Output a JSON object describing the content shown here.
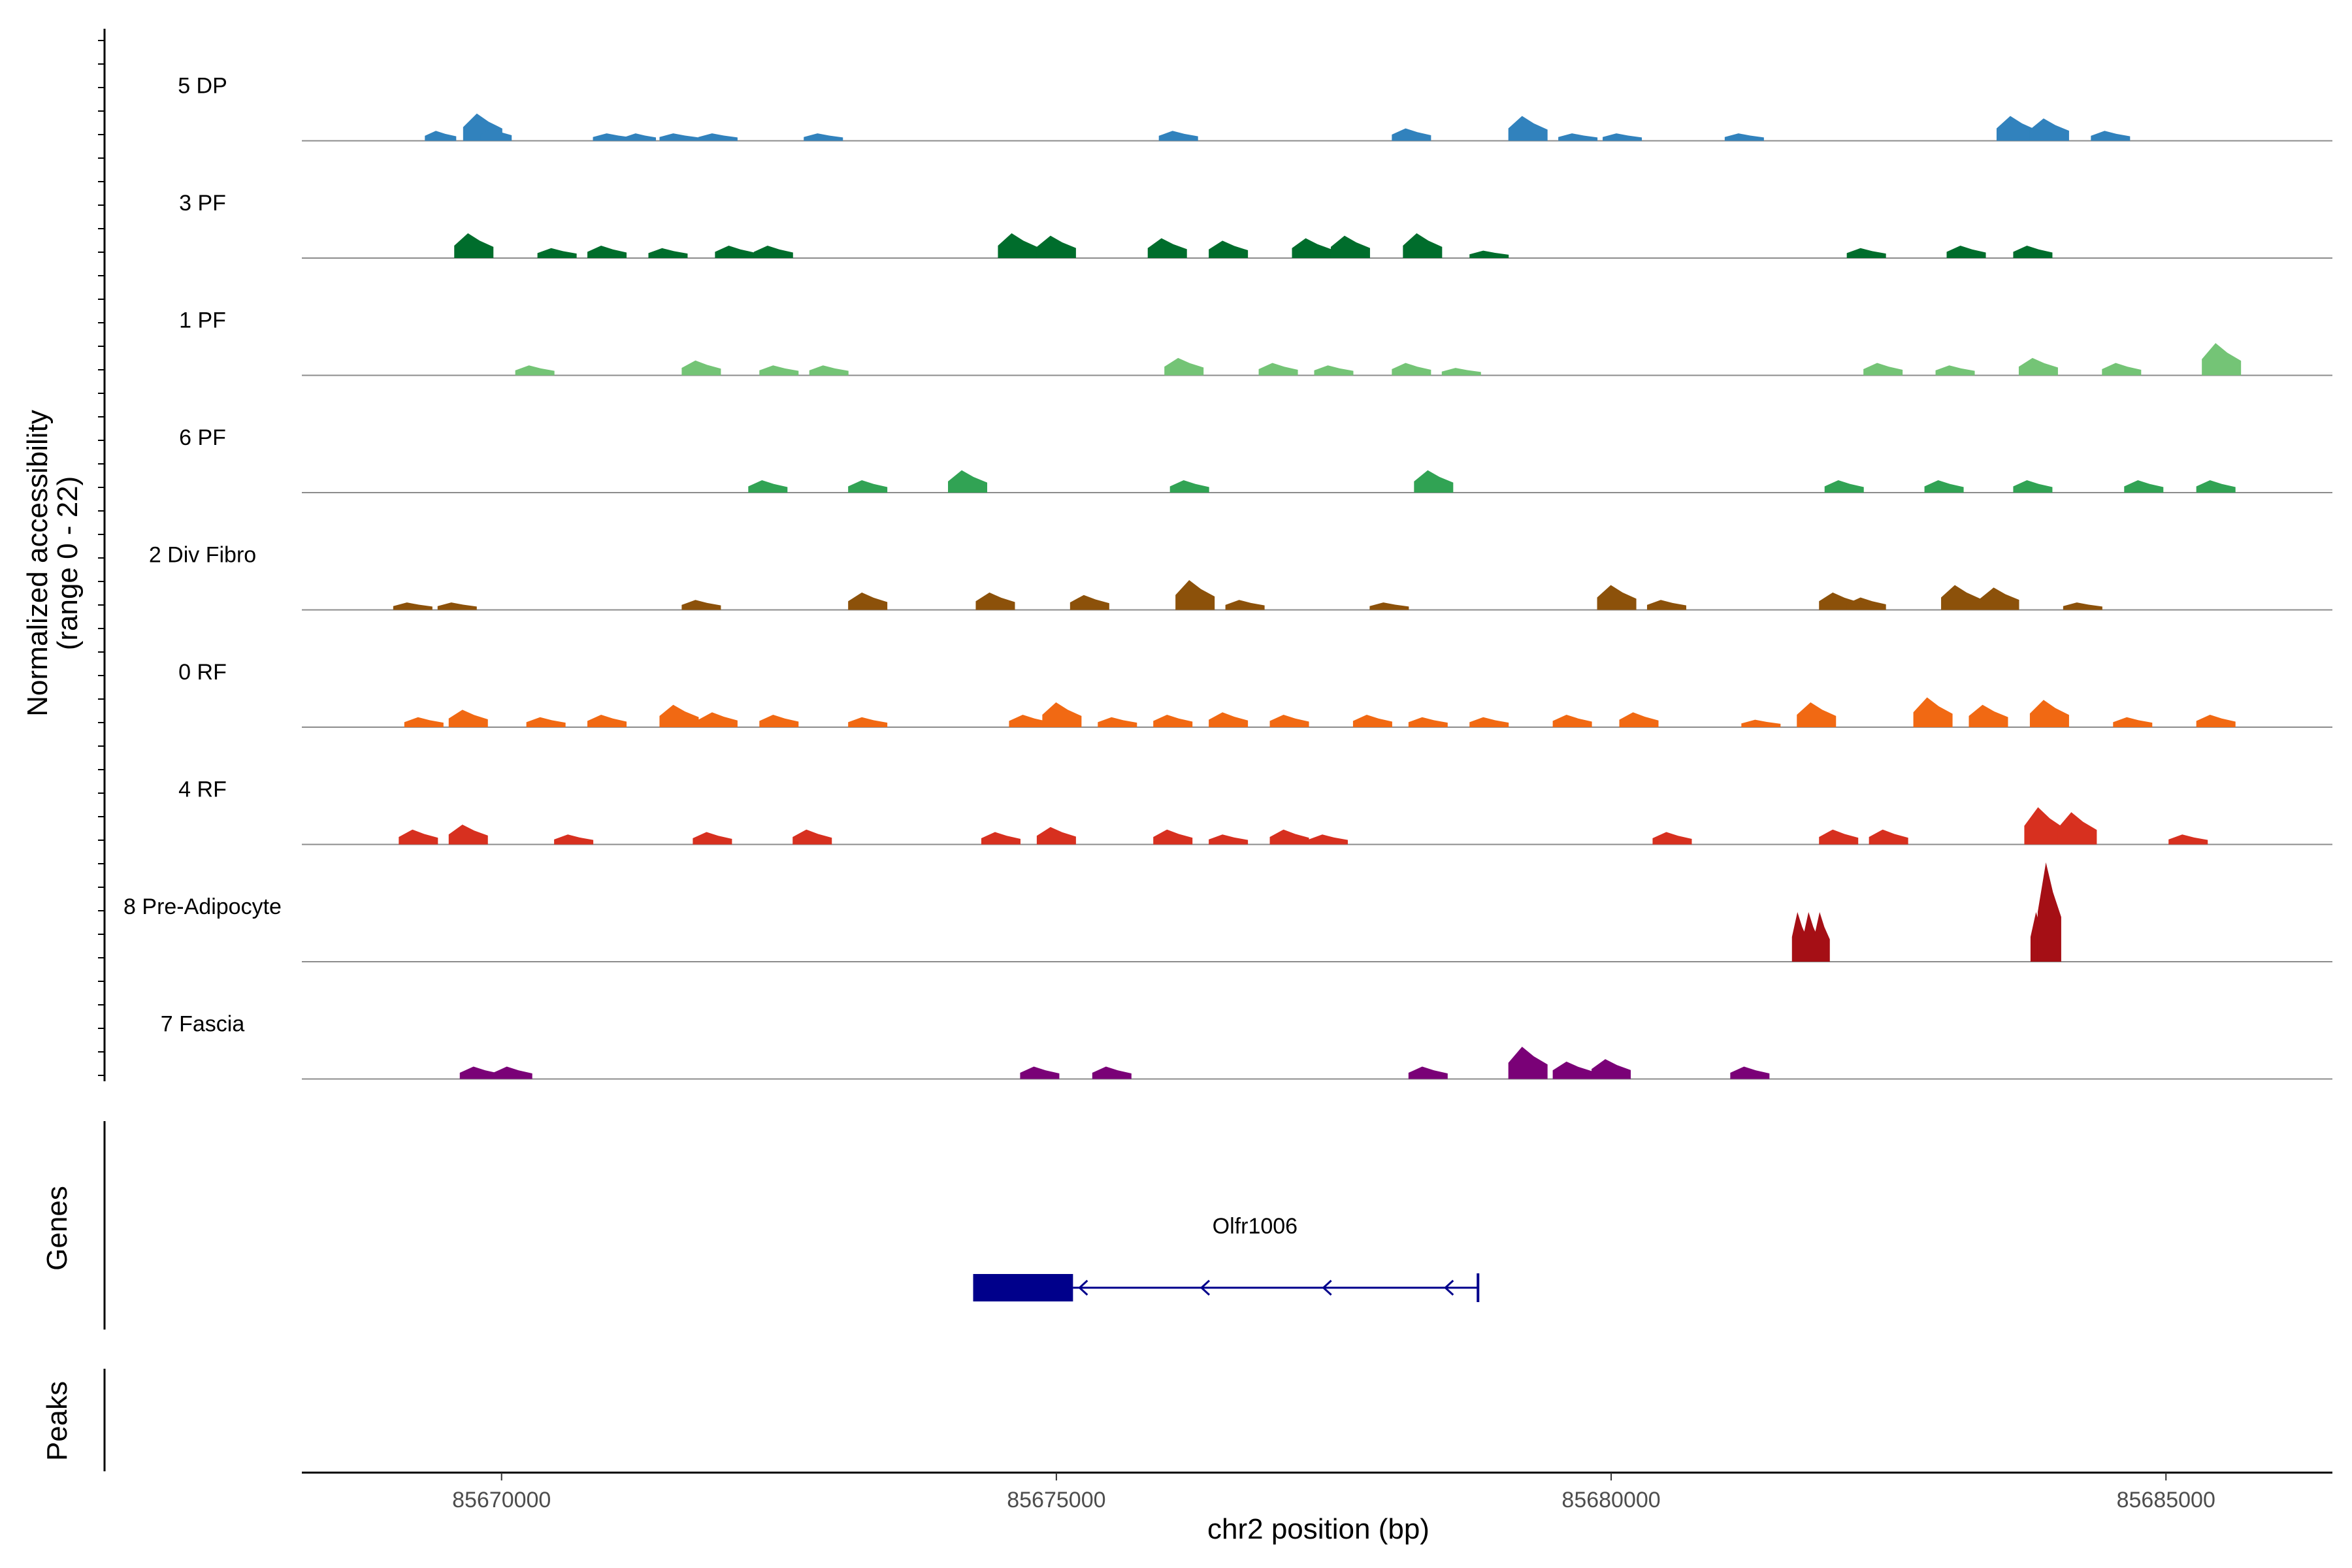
{
  "chart_data": {
    "type": "area",
    "title": "",
    "ylabel_line1": "Normalized accessibility",
    "ylabel_line2": "(range 0 - 22)",
    "ylim": [
      0,
      22
    ],
    "xlabel": "chr2 position (bp)",
    "xlim": [
      85668200,
      85686500
    ],
    "x_ticks": [
      85670000,
      85675000,
      85680000,
      85685000
    ],
    "x_tick_labels": [
      "85670000",
      "85675000",
      "85680000",
      "85685000"
    ],
    "grid": false,
    "genes_label": "Genes",
    "peaks_label": "Peaks",
    "series": [
      {
        "name": "5 DP",
        "color": "#3182bd",
        "peaks": [
          [
            85669450,
            8,
            4
          ],
          [
            85669830,
            22,
            5
          ],
          [
            85669950,
            10,
            4
          ],
          [
            85671000,
            6,
            5
          ],
          [
            85671250,
            6,
            4
          ],
          [
            85671600,
            6,
            5
          ],
          [
            85671950,
            6,
            5
          ],
          [
            85672900,
            6,
            5
          ],
          [
            85676100,
            8,
            5
          ],
          [
            85678200,
            10,
            5
          ],
          [
            85679250,
            20,
            5
          ],
          [
            85679700,
            6,
            5
          ],
          [
            85680100,
            6,
            5
          ],
          [
            85681200,
            6,
            5
          ],
          [
            85683650,
            20,
            5
          ],
          [
            85683950,
            18,
            5
          ],
          [
            85684500,
            8,
            5
          ]
        ]
      },
      {
        "name": "3 PF",
        "color": "#006d2c",
        "peaks": [
          [
            85669750,
            20,
            5
          ],
          [
            85670500,
            8,
            5
          ],
          [
            85670950,
            10,
            5
          ],
          [
            85671500,
            8,
            5
          ],
          [
            85672100,
            10,
            5
          ],
          [
            85672450,
            10,
            5
          ],
          [
            85674650,
            20,
            5
          ],
          [
            85675000,
            18,
            5
          ],
          [
            85676000,
            16,
            5
          ],
          [
            85676550,
            14,
            5
          ],
          [
            85677300,
            16,
            5
          ],
          [
            85677650,
            18,
            5
          ],
          [
            85678300,
            20,
            5
          ],
          [
            85678900,
            6,
            5
          ],
          [
            85682300,
            8,
            5
          ],
          [
            85683200,
            10,
            5
          ],
          [
            85683800,
            10,
            5
          ]
        ]
      },
      {
        "name": "1 PF",
        "color": "#74c476",
        "peaks": [
          [
            85670300,
            8,
            5
          ],
          [
            85671800,
            12,
            5
          ],
          [
            85672500,
            8,
            5
          ],
          [
            85672950,
            8,
            5
          ],
          [
            85676150,
            14,
            5
          ],
          [
            85677000,
            10,
            5
          ],
          [
            85677500,
            8,
            5
          ],
          [
            85678200,
            10,
            5
          ],
          [
            85678650,
            6,
            5
          ],
          [
            85682450,
            10,
            5
          ],
          [
            85683100,
            8,
            5
          ],
          [
            85683850,
            14,
            5
          ],
          [
            85684600,
            10,
            5
          ],
          [
            85685500,
            26,
            5
          ]
        ]
      },
      {
        "name": "6 PF",
        "color": "#31a354",
        "peaks": [
          [
            85672400,
            10,
            5
          ],
          [
            85673300,
            10,
            5
          ],
          [
            85674200,
            18,
            5
          ],
          [
            85676200,
            10,
            5
          ],
          [
            85678400,
            18,
            5
          ],
          [
            85682100,
            10,
            5
          ],
          [
            85683000,
            10,
            5
          ],
          [
            85683800,
            10,
            5
          ],
          [
            85684800,
            10,
            5
          ],
          [
            85685450,
            10,
            5
          ]
        ]
      },
      {
        "name": "2 Div Fibro",
        "color": "#8c510a",
        "peaks": [
          [
            85669200,
            6,
            5
          ],
          [
            85669600,
            6,
            5
          ],
          [
            85671800,
            8,
            5
          ],
          [
            85673300,
            14,
            5
          ],
          [
            85674450,
            14,
            5
          ],
          [
            85675300,
            12,
            5
          ],
          [
            85676250,
            24,
            5
          ],
          [
            85676700,
            8,
            5
          ],
          [
            85678000,
            6,
            5
          ],
          [
            85680050,
            20,
            5
          ],
          [
            85680500,
            8,
            5
          ],
          [
            85682050,
            14,
            5
          ],
          [
            85682300,
            10,
            5
          ],
          [
            85683150,
            20,
            5
          ],
          [
            85683500,
            18,
            5
          ],
          [
            85684250,
            6,
            5
          ]
        ]
      },
      {
        "name": "0 RF",
        "color": "#f16913",
        "peaks": [
          [
            85669300,
            8,
            5
          ],
          [
            85669700,
            14,
            5
          ],
          [
            85670400,
            8,
            5
          ],
          [
            85670950,
            10,
            5
          ],
          [
            85671600,
            18,
            5
          ],
          [
            85671950,
            12,
            5
          ],
          [
            85672500,
            10,
            5
          ],
          [
            85673300,
            8,
            5
          ],
          [
            85674750,
            10,
            5
          ],
          [
            85675050,
            20,
            5
          ],
          [
            85675550,
            8,
            5
          ],
          [
            85676050,
            10,
            5
          ],
          [
            85676550,
            12,
            5
          ],
          [
            85677100,
            10,
            5
          ],
          [
            85677850,
            10,
            5
          ],
          [
            85678350,
            8,
            5
          ],
          [
            85678900,
            8,
            5
          ],
          [
            85679650,
            10,
            5
          ],
          [
            85680250,
            12,
            5
          ],
          [
            85681350,
            6,
            5
          ],
          [
            85681850,
            20,
            5
          ],
          [
            85682900,
            24,
            5
          ],
          [
            85683400,
            18,
            5
          ],
          [
            85683950,
            22,
            5
          ],
          [
            85684700,
            8,
            5
          ],
          [
            85685450,
            10,
            5
          ]
        ]
      },
      {
        "name": "4 RF",
        "color": "#d7301f",
        "peaks": [
          [
            85669250,
            12,
            5
          ],
          [
            85669700,
            16,
            5
          ],
          [
            85670650,
            8,
            5
          ],
          [
            85671900,
            10,
            5
          ],
          [
            85672800,
            12,
            5
          ],
          [
            85674500,
            10,
            5
          ],
          [
            85675000,
            14,
            5
          ],
          [
            85676050,
            12,
            5
          ],
          [
            85676550,
            8,
            5
          ],
          [
            85677100,
            12,
            5
          ],
          [
            85677450,
            8,
            5
          ],
          [
            85680550,
            10,
            5
          ],
          [
            85682050,
            12,
            5
          ],
          [
            85682500,
            12,
            5
          ],
          [
            85683900,
            30,
            5
          ],
          [
            85684200,
            26,
            5
          ],
          [
            85685200,
            8,
            5
          ]
        ]
      },
      {
        "name": "8 Pre-Adipocyte",
        "color": "#a50f15",
        "peaks": [
          [
            85681700,
            40,
            2
          ],
          [
            85681800,
            40,
            2
          ],
          [
            85681900,
            40,
            2
          ],
          [
            85683850,
            40,
            2
          ],
          [
            85683950,
            80,
            3
          ]
        ]
      },
      {
        "name": "7 Fascia",
        "color": "#7a0177",
        "peaks": [
          [
            85669800,
            10,
            5
          ],
          [
            85670100,
            10,
            5
          ],
          [
            85674850,
            10,
            5
          ],
          [
            85675500,
            10,
            5
          ],
          [
            85678350,
            10,
            5
          ],
          [
            85679250,
            26,
            5
          ],
          [
            85679650,
            14,
            5
          ],
          [
            85680000,
            16,
            5
          ],
          [
            85681250,
            10,
            5
          ]
        ]
      }
    ],
    "gene": {
      "name": "Olfr1006",
      "color": "#00008b",
      "strand": "-",
      "start": 85674250,
      "end": 85678800,
      "exon": [
        85674250,
        85675150
      ]
    }
  }
}
